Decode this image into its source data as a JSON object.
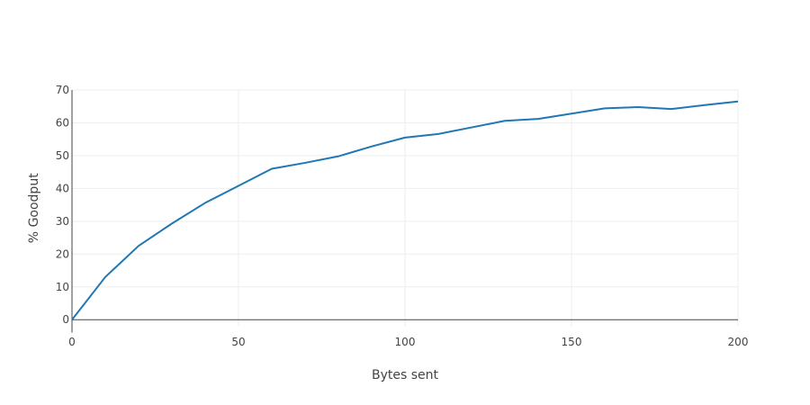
{
  "chart_data": {
    "type": "line",
    "title": "",
    "xlabel": "Bytes sent",
    "ylabel": "% Goodput",
    "xlim": [
      0,
      200
    ],
    "ylim": [
      -2,
      70
    ],
    "grid": true,
    "legend": "none",
    "x_ticks": [
      "0",
      "50",
      "100",
      "150",
      "200"
    ],
    "y_ticks": [
      "0",
      "10",
      "20",
      "30",
      "40",
      "50",
      "60",
      "70"
    ],
    "series": [
      {
        "color": "#1f77b4",
        "x": [
          0,
          10,
          20,
          30,
          40,
          50,
          60,
          70,
          80,
          90,
          100,
          110,
          120,
          130,
          140,
          150,
          160,
          170,
          180,
          190,
          200
        ],
        "y": [
          0,
          13,
          22.5,
          29.3,
          35.6,
          40.8,
          46,
          47.8,
          49.8,
          52.8,
          55.5,
          56.6,
          58.6,
          60.6,
          61.2,
          62.8,
          64.4,
          64.8,
          64.2,
          65.4,
          66.5
        ]
      }
    ]
  }
}
